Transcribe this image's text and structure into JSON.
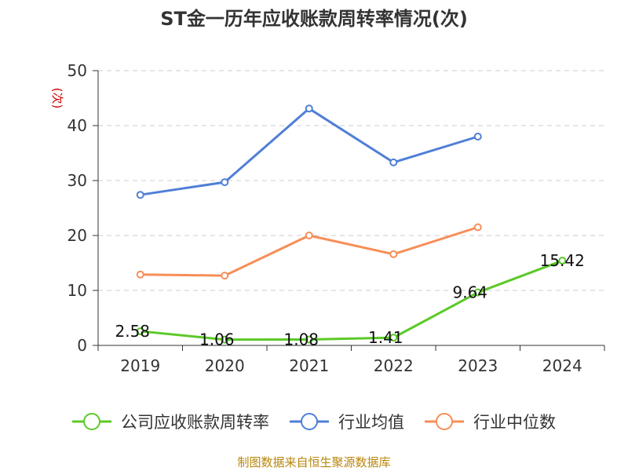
{
  "chart_data": {
    "type": "line",
    "title": "ST金一历年应收账款周转率情况(次)",
    "ylabel": "(次)",
    "xlabel": "",
    "categories": [
      "2019",
      "2020",
      "2021",
      "2022",
      "2023",
      "2024"
    ],
    "ylim": [
      0,
      50
    ],
    "yticks": [
      0,
      10,
      20,
      30,
      40,
      50
    ],
    "grid": true,
    "legend_position": "bottom",
    "series": [
      {
        "name": "公司应收账款周转率",
        "color": "#5cc928",
        "values": [
          2.58,
          1.06,
          1.08,
          1.41,
          9.64,
          15.42
        ],
        "data_labels": [
          "2.58",
          "1.06",
          "1.08",
          "1.41",
          "9.64",
          "15.42"
        ]
      },
      {
        "name": "行业均值",
        "color": "#4f7fd6",
        "values": [
          27.4,
          29.7,
          43.1,
          33.3,
          38.0,
          null
        ]
      },
      {
        "name": "行业中位数",
        "color": "#f78e58",
        "values": [
          12.9,
          12.7,
          20.0,
          16.6,
          21.5,
          null
        ]
      }
    ]
  },
  "source": "制图数据来自恒生聚源数据库"
}
